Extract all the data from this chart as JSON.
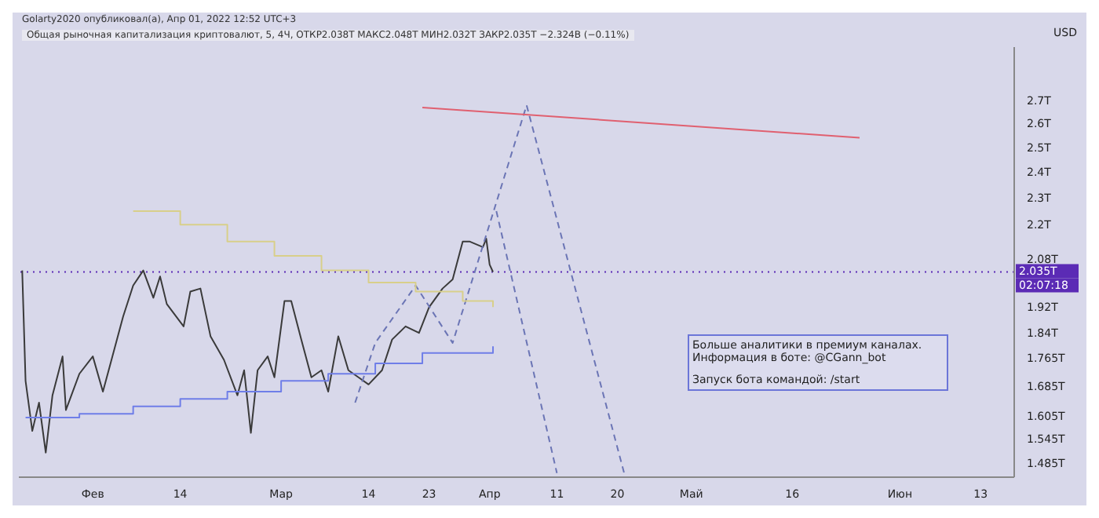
{
  "chart_data": {
    "type": "line",
    "title": "Общая рыночная капитализация криптовалют, 5, 4Ч, ОТКР2.038T МАКС2.048T МИН2.032T ЗАКР2.035T −2.324B (−0.11%)",
    "subtitle": "Golarty2020 опубликовал(а), Апр 01, 2022 12:52 UTC+3",
    "ylabel": "USD",
    "log": true,
    "grid": false,
    "legend": false,
    "marker": "none",
    "xlim": [
      "2022-01-21",
      "2022-06-18"
    ],
    "xticks": [
      {
        "value": "2022-02-01",
        "label": "Фев"
      },
      {
        "value": "2022-02-14",
        "label": "14"
      },
      {
        "value": "2022-03-01",
        "label": "Мар"
      },
      {
        "value": "2022-03-14",
        "label": "14"
      },
      {
        "value": "2022-03-23",
        "label": "23"
      },
      {
        "value": "2022-04-01",
        "label": "Апр"
      },
      {
        "value": "2022-04-11",
        "label": "11"
      },
      {
        "value": "2022-04-20",
        "label": "20"
      },
      {
        "value": "2022-05-01",
        "label": "Май"
      },
      {
        "value": "2022-05-16",
        "label": "16"
      },
      {
        "value": "2022-06-01",
        "label": "Июн"
      },
      {
        "value": "2022-06-13",
        "label": "13"
      }
    ],
    "ylim": [
      1.45,
      2.95
    ],
    "yticks": [
      {
        "value": 1.485,
        "label": "1.485T"
      },
      {
        "value": 1.545,
        "label": "1.545T"
      },
      {
        "value": 1.605,
        "label": "1.605T"
      },
      {
        "value": 1.685,
        "label": "1.685T"
      },
      {
        "value": 1.765,
        "label": "1.765T"
      },
      {
        "value": 1.84,
        "label": "1.84T"
      },
      {
        "value": 1.92,
        "label": "1.92T"
      },
      {
        "value": 2.08,
        "label": "2.08T"
      },
      {
        "value": 2.2,
        "label": "2.2T"
      },
      {
        "value": 2.3,
        "label": "2.3T"
      },
      {
        "value": 2.4,
        "label": "2.4T"
      },
      {
        "value": 2.5,
        "label": "2.5T"
      },
      {
        "value": 2.6,
        "label": "2.6T"
      },
      {
        "value": 2.7,
        "label": "2.7T"
      }
    ],
    "series": [
      {
        "color": "#3a3a3a",
        "line_style": "solid",
        "x": [
          "2022-01-21T12:00",
          "2022-01-22",
          "2022-01-23",
          "2022-01-24",
          "2022-01-25",
          "2022-01-26",
          "2022-01-27T12:00",
          "2022-01-28",
          "2022-01-30",
          "2022-02-01",
          "2022-02-02T12:00",
          "2022-02-03T12:00",
          "2022-02-05T12:00",
          "2022-02-07",
          "2022-02-08T12:00",
          "2022-02-10",
          "2022-02-11",
          "2022-02-12",
          "2022-02-14T12:00",
          "2022-02-15T12:00",
          "2022-02-17",
          "2022-02-18T12:00",
          "2022-02-20T12:00",
          "2022-02-22T12:00",
          "2022-02-23T12:00",
          "2022-02-24T12:00",
          "2022-02-25T12:00",
          "2022-02-27",
          "2022-02-28",
          "2022-03-01T12:00",
          "2022-03-02T12:00",
          "2022-03-04",
          "2022-03-05T12:00",
          "2022-03-07",
          "2022-03-08",
          "2022-03-09T12:00",
          "2022-03-11",
          "2022-03-12T12:00",
          "2022-03-14",
          "2022-03-16",
          "2022-03-17T12:00",
          "2022-03-19T12:00",
          "2022-03-21T12:00",
          "2022-03-23",
          "2022-03-25",
          "2022-03-26T12:00",
          "2022-03-28",
          "2022-03-29",
          "2022-03-31",
          "2022-03-31T12:00",
          "2022-04-01",
          "2022-04-01T12:00"
        ],
        "values": [
          2.04,
          1.7,
          1.565,
          1.64,
          1.51,
          1.66,
          1.77,
          1.62,
          1.72,
          1.77,
          1.67,
          1.74,
          1.89,
          1.99,
          2.04,
          1.95,
          2.02,
          1.93,
          1.86,
          1.97,
          1.98,
          1.83,
          1.76,
          1.66,
          1.73,
          1.56,
          1.73,
          1.77,
          1.71,
          1.94,
          1.94,
          1.82,
          1.71,
          1.73,
          1.67,
          1.83,
          1.73,
          1.71,
          1.69,
          1.73,
          1.82,
          1.86,
          1.84,
          1.92,
          1.98,
          2.01,
          2.14,
          2.14,
          2.12,
          2.15,
          2.06,
          2.035
        ]
      },
      {
        "color": "#6b75b5",
        "line_style": "dashed",
        "x": [
          "2022-03-12",
          "2022-03-15",
          "2022-03-21",
          "2022-03-26T12:00",
          "2022-04-06T12:00",
          "2022-04-21"
        ],
        "values": [
          1.64,
          1.81,
          1.99,
          1.81,
          2.68,
          1.46
        ]
      },
      {
        "color": "#6b75b5",
        "line_style": "dashed",
        "x": [
          "2022-04-02",
          "2022-04-11"
        ],
        "values": [
          2.25,
          1.46
        ]
      },
      {
        "color": "#e06070",
        "line_style": "solid",
        "x": [
          "2022-03-22",
          "2022-05-26"
        ],
        "values": [
          2.67,
          2.54
        ]
      },
      {
        "type": "step",
        "color": "#d8cf8a",
        "line_style": "solid",
        "x": [
          "2022-02-07",
          "2022-02-14",
          "2022-02-21",
          "2022-02-28",
          "2022-03-07",
          "2022-03-14",
          "2022-03-21",
          "2022-03-28",
          "2022-04-01T12:00"
        ],
        "values": [
          2.25,
          2.2,
          2.14,
          2.09,
          2.04,
          2.0,
          1.97,
          1.94,
          1.92
        ]
      },
      {
        "type": "step",
        "color": "#6f7ee8",
        "line_style": "solid",
        "x": [
          "2022-01-22",
          "2022-01-30",
          "2022-02-07",
          "2022-02-14",
          "2022-02-21",
          "2022-03-01",
          "2022-03-08",
          "2022-03-15",
          "2022-03-22",
          "2022-04-01T12:00"
        ],
        "values": [
          1.6,
          1.61,
          1.63,
          1.65,
          1.67,
          1.7,
          1.72,
          1.75,
          1.78,
          1.8
        ]
      }
    ],
    "ref_lines": [
      {
        "axis": "y",
        "value": 2.035,
        "label": "2.035T",
        "color": "#5b2bb5",
        "line_style": "dotted"
      }
    ],
    "annotations": [
      "Больше аналитики в премиум каналах.",
      "Информация в боте: @CGann_bot",
      "Запуск бота командой: /start",
      "02:07:18"
    ]
  }
}
